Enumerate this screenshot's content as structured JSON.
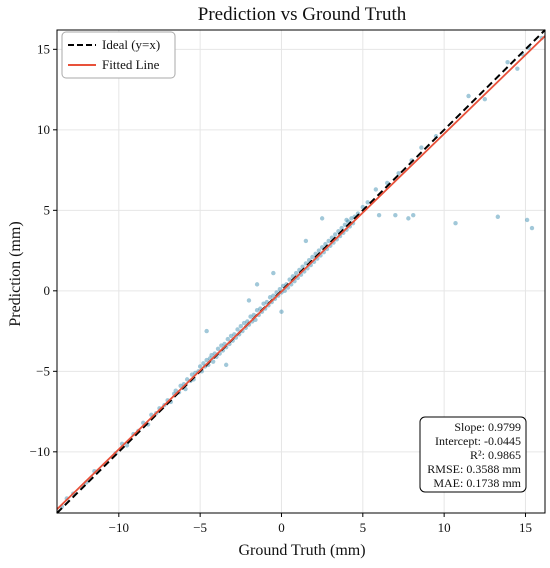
{
  "chart_data": {
    "type": "scatter",
    "title": "Prediction vs Ground Truth",
    "xlabel": "Ground Truth (mm)",
    "ylabel": "Prediction (mm)",
    "xlim": [
      -13.8,
      16.2
    ],
    "ylim": [
      -13.8,
      16.2
    ],
    "xticks": [
      -10,
      -5,
      0,
      5,
      10,
      15
    ],
    "yticks": [
      -10,
      -5,
      0,
      5,
      10,
      15
    ],
    "xtick_labels": [
      "−10",
      "−5",
      "0",
      "5",
      "10",
      "15"
    ],
    "ytick_labels": [
      "−10",
      "−5",
      "0",
      "5",
      "10",
      "15"
    ],
    "grid": true,
    "legend_position": "top-left",
    "stats_position": "bottom-right",
    "legend": [
      {
        "label": "Ideal (y=x)",
        "style": "dashed",
        "color": "#000000"
      },
      {
        "label": "Fitted Line",
        "style": "solid",
        "color": "#e8513a"
      }
    ],
    "fitted_line": {
      "slope": 0.9799,
      "intercept": -0.0445
    },
    "stats": [
      {
        "label": "Slope",
        "value": "0.9799"
      },
      {
        "label": "Intercept",
        "value": "-0.0445"
      },
      {
        "label": "R²",
        "value": "0.9865"
      },
      {
        "label": "RMSE",
        "value": "0.3588 mm"
      },
      {
        "label": "MAE",
        "value": "0.1738 mm"
      }
    ],
    "point_color": "#2e86ab",
    "scatter_series": {
      "name": "",
      "points": [
        [
          -13.5,
          -13.4
        ],
        [
          -13.2,
          -12.9
        ],
        [
          -12.8,
          -12.6
        ],
        [
          -12.0,
          -11.9
        ],
        [
          -11.5,
          -11.2
        ],
        [
          -10.2,
          -10.1
        ],
        [
          -9.8,
          -9.5
        ],
        [
          -9.5,
          -9.6
        ],
        [
          -9.1,
          -8.9
        ],
        [
          -8.8,
          -8.7
        ],
        [
          -8.5,
          -8.2
        ],
        [
          -8.2,
          -8.3
        ],
        [
          -8.0,
          -7.7
        ],
        [
          -7.7,
          -7.6
        ],
        [
          -7.5,
          -7.3
        ],
        [
          -7.2,
          -7.1
        ],
        [
          -7.0,
          -6.8
        ],
        [
          -6.8,
          -6.9
        ],
        [
          -6.6,
          -6.4
        ],
        [
          -6.5,
          -6.2
        ],
        [
          -6.3,
          -6.3
        ],
        [
          -6.2,
          -5.9
        ],
        [
          -6.0,
          -5.8
        ],
        [
          -5.9,
          -6.1
        ],
        [
          -5.8,
          -5.5
        ],
        [
          -5.6,
          -5.6
        ],
        [
          -5.5,
          -5.2
        ],
        [
          -5.4,
          -5.5
        ],
        [
          -5.3,
          -5.1
        ],
        [
          -5.1,
          -5.0
        ],
        [
          -5.0,
          -4.7
        ],
        [
          -4.9,
          -5.0
        ],
        [
          -4.8,
          -4.5
        ],
        [
          -4.7,
          -4.7
        ],
        [
          -4.6,
          -4.3
        ],
        [
          -4.5,
          -4.6
        ],
        [
          -4.4,
          -4.2
        ],
        [
          -4.3,
          -4.0
        ],
        [
          -4.2,
          -4.4
        ],
        [
          -4.1,
          -3.9
        ],
        [
          -4.0,
          -4.1
        ],
        [
          -3.9,
          -3.6
        ],
        [
          -3.8,
          -3.9
        ],
        [
          -3.7,
          -3.4
        ],
        [
          -3.6,
          -3.7
        ],
        [
          -3.5,
          -3.3
        ],
        [
          -3.4,
          -3.5
        ],
        [
          -3.3,
          -3.0
        ],
        [
          -3.2,
          -3.3
        ],
        [
          -3.1,
          -2.8
        ],
        [
          -3.0,
          -3.1
        ],
        [
          -2.9,
          -2.7
        ],
        [
          -2.8,
          -2.9
        ],
        [
          -2.7,
          -2.4
        ],
        [
          -2.6,
          -2.7
        ],
        [
          -2.5,
          -2.2
        ],
        [
          -2.4,
          -2.5
        ],
        [
          -2.3,
          -2.0
        ],
        [
          -2.2,
          -2.3
        ],
        [
          -2.1,
          -1.9
        ],
        [
          -2.0,
          -2.1
        ],
        [
          -1.9,
          -1.6
        ],
        [
          -1.8,
          -1.9
        ],
        [
          -1.7,
          -1.5
        ],
        [
          -1.6,
          -1.8
        ],
        [
          -1.5,
          -1.2
        ],
        [
          -1.4,
          -1.5
        ],
        [
          -1.3,
          -1.1
        ],
        [
          -1.2,
          -1.3
        ],
        [
          -1.1,
          -0.8
        ],
        [
          -1.0,
          -1.1
        ],
        [
          -0.9,
          -0.7
        ],
        [
          -0.8,
          -0.9
        ],
        [
          -0.7,
          -0.4
        ],
        [
          -0.6,
          -0.7
        ],
        [
          -0.5,
          -0.3
        ],
        [
          -0.4,
          -0.5
        ],
        [
          -0.3,
          -0.1
        ],
        [
          -0.2,
          -0.3
        ],
        [
          -0.1,
          0.1
        ],
        [
          0.0,
          -0.1
        ],
        [
          0.1,
          0.3
        ],
        [
          0.2,
          0.0
        ],
        [
          0.3,
          0.4
        ],
        [
          0.4,
          0.2
        ],
        [
          0.5,
          0.7
        ],
        [
          0.6,
          0.4
        ],
        [
          0.7,
          0.9
        ],
        [
          0.8,
          0.6
        ],
        [
          0.9,
          1.1
        ],
        [
          1.0,
          0.8
        ],
        [
          1.1,
          1.3
        ],
        [
          1.2,
          1.0
        ],
        [
          1.3,
          1.5
        ],
        [
          1.4,
          1.2
        ],
        [
          1.5,
          1.7
        ],
        [
          1.6,
          1.4
        ],
        [
          1.7,
          1.9
        ],
        [
          1.8,
          1.6
        ],
        [
          1.9,
          2.1
        ],
        [
          2.0,
          1.8
        ],
        [
          2.1,
          2.3
        ],
        [
          2.2,
          2.0
        ],
        [
          2.3,
          2.5
        ],
        [
          2.4,
          2.2
        ],
        [
          2.5,
          2.7
        ],
        [
          2.6,
          2.4
        ],
        [
          2.7,
          2.9
        ],
        [
          2.8,
          2.6
        ],
        [
          2.9,
          3.1
        ],
        [
          3.0,
          2.8
        ],
        [
          3.1,
          3.3
        ],
        [
          3.2,
          3.0
        ],
        [
          3.3,
          3.5
        ],
        [
          3.4,
          3.2
        ],
        [
          3.5,
          3.7
        ],
        [
          3.6,
          3.4
        ],
        [
          3.7,
          3.9
        ],
        [
          3.8,
          3.6
        ],
        [
          3.9,
          4.1
        ],
        [
          4.0,
          3.8
        ],
        [
          4.1,
          4.3
        ],
        [
          4.2,
          4.0
        ],
        [
          4.3,
          4.5
        ],
        [
          4.4,
          4.2
        ],
        [
          4.5,
          4.6
        ],
        [
          4.7,
          4.8
        ],
        [
          5.0,
          5.2
        ],
        [
          5.3,
          5.5
        ],
        [
          5.8,
          6.3
        ],
        [
          6.5,
          6.7
        ],
        [
          7.2,
          7.3
        ],
        [
          8.0,
          8.1
        ],
        [
          8.6,
          8.9
        ],
        [
          9.5,
          9.6
        ],
        [
          11.5,
          12.1
        ],
        [
          12.5,
          11.9
        ],
        [
          13.9,
          14.2
        ],
        [
          14.5,
          13.8
        ],
        [
          14.8,
          14.7
        ],
        [
          15.2,
          15.1
        ],
        [
          16.0,
          15.7
        ],
        [
          -1.5,
          0.4
        ],
        [
          -2.0,
          -0.6
        ],
        [
          -3.4,
          -4.6
        ],
        [
          2.5,
          4.5
        ],
        [
          4.0,
          4.4
        ],
        [
          6.0,
          4.7
        ],
        [
          7.0,
          4.7
        ],
        [
          7.8,
          4.5
        ],
        [
          8.1,
          4.7
        ],
        [
          10.7,
          4.2
        ],
        [
          13.3,
          4.6
        ],
        [
          15.1,
          4.4
        ],
        [
          15.4,
          3.9
        ],
        [
          0.0,
          -1.3
        ],
        [
          1.5,
          3.1
        ],
        [
          -4.6,
          -2.5
        ],
        [
          -0.5,
          1.1
        ]
      ]
    }
  }
}
